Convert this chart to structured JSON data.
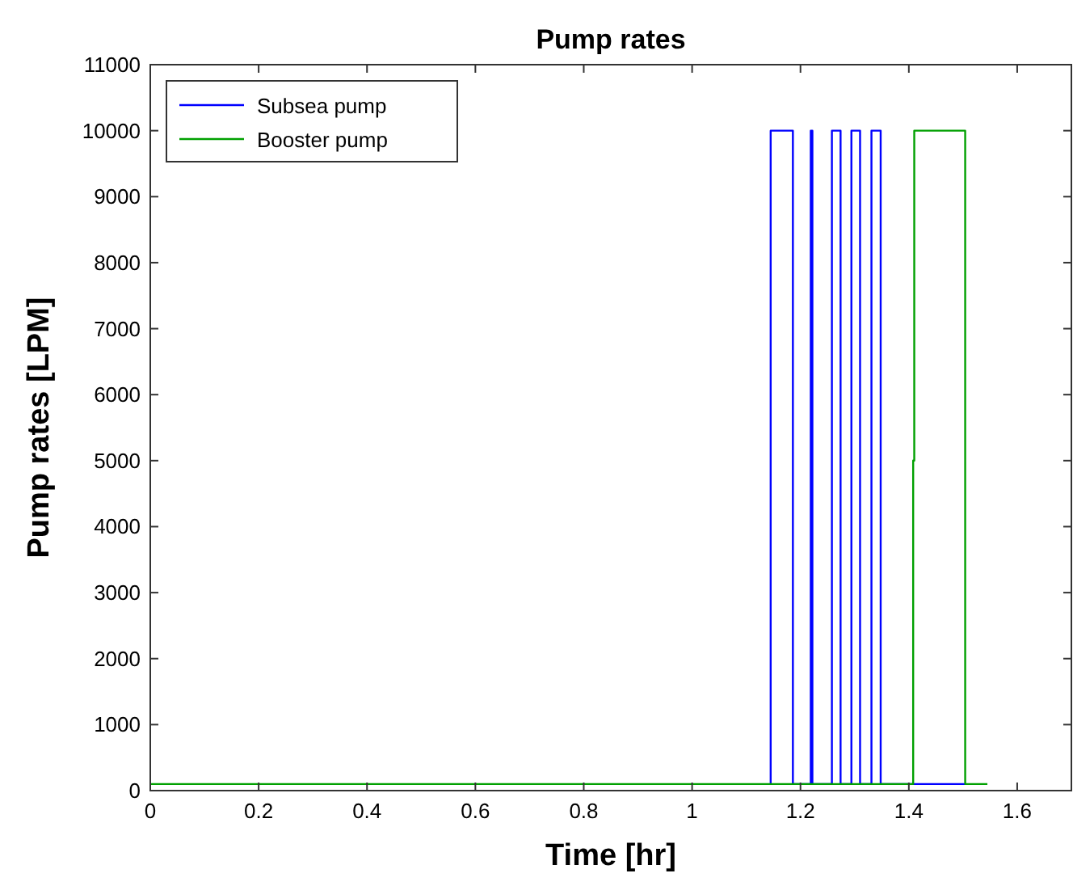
{
  "chart_data": {
    "type": "line",
    "title": "Pump rates",
    "xlabel": "Time [hr]",
    "ylabel": "Pump rates [LPM]",
    "xlim": [
      0,
      1.7
    ],
    "xticks": [
      0,
      0.2,
      0.4,
      0.6,
      0.8,
      1,
      1.2,
      1.4,
      1.6
    ],
    "ylim": [
      0,
      11000
    ],
    "yticks": [
      0,
      1000,
      2000,
      3000,
      4000,
      5000,
      6000,
      7000,
      8000,
      9000,
      10000,
      11000
    ],
    "grid": false,
    "legend": "top left",
    "marker": "none",
    "line_style": "solid",
    "series": [
      {
        "name": "Subsea pump",
        "color": "#0000ff",
        "x": [
          1.145,
          1.145,
          1.186,
          1.186,
          1.219,
          1.219,
          1.222,
          1.222,
          1.258,
          1.258,
          1.274,
          1.274,
          1.294,
          1.294,
          1.31,
          1.31,
          1.331,
          1.331,
          1.348,
          1.348,
          1.504
        ],
        "values": [
          100,
          10000,
          10000,
          100,
          100,
          10000,
          10000,
          100,
          100,
          10000,
          10000,
          100,
          100,
          10000,
          10000,
          100,
          100,
          10000,
          10000,
          100,
          100
        ]
      },
      {
        "name": "Booster pump",
        "color": "#00a000",
        "x": [
          0,
          1.408,
          1.408,
          1.41,
          1.41,
          1.504,
          1.504,
          1.545
        ],
        "values": [
          100,
          100,
          5000,
          5000,
          10000,
          10000,
          100,
          100
        ]
      }
    ]
  }
}
